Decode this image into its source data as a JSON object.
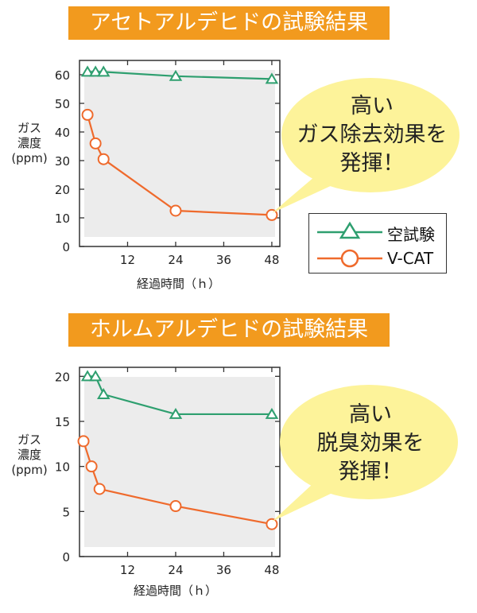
{
  "colors": {
    "banner": "#f29a1e",
    "green": "#2e9f6f",
    "orange": "#ef6a2c",
    "plot_bg": "#ececec",
    "bubble": "#fdf39a"
  },
  "legend": {
    "items": [
      {
        "label": "空試験",
        "marker": "triangle",
        "color": "#2e9f6f"
      },
      {
        "label": "V-CAT",
        "marker": "circle",
        "color": "#ef6a2c"
      }
    ]
  },
  "chart_data": [
    {
      "type": "line",
      "title": "アセトアルデヒドの試験結果",
      "ylabel_lines": [
        "ガス",
        "濃度",
        "(ppm)"
      ],
      "xlabel": "経過時間（ｈ）",
      "xlim": [
        0,
        50
      ],
      "ylim": [
        0,
        65
      ],
      "xticks": [
        12,
        24,
        36,
        48
      ],
      "yticks": [
        0,
        10,
        20,
        30,
        40,
        50,
        60
      ],
      "series": [
        {
          "name": "空試験",
          "marker": "triangle",
          "x": [
            2,
            4,
            6,
            24,
            48
          ],
          "y": [
            61,
            61,
            61,
            59.5,
            58.5
          ]
        },
        {
          "name": "V-CAT",
          "marker": "circle",
          "x": [
            2,
            4,
            6,
            24,
            48
          ],
          "y": [
            46,
            36,
            30.5,
            12.5,
            11
          ]
        }
      ],
      "callout": [
        "高い",
        "ガス除去効果を",
        "発揮！"
      ]
    },
    {
      "type": "line",
      "title": "ホルムアルデヒドの試験結果",
      "ylabel_lines": [
        "ガス",
        "濃度",
        "(ppm)"
      ],
      "xlabel": "経過時間（ｈ）",
      "xlim": [
        0,
        50
      ],
      "ylim": [
        0,
        21
      ],
      "xticks": [
        12,
        24,
        36,
        48
      ],
      "yticks": [
        0,
        5,
        10,
        15,
        20
      ],
      "series": [
        {
          "name": "空試験",
          "marker": "triangle",
          "x": [
            2,
            4,
            6,
            24,
            48
          ],
          "y": [
            20,
            20,
            18,
            15.8,
            15.8
          ]
        },
        {
          "name": "V-CAT",
          "marker": "circle",
          "x": [
            1,
            3,
            5,
            24,
            48
          ],
          "y": [
            12.8,
            10,
            7.5,
            5.6,
            3.6
          ]
        }
      ],
      "callout": [
        "高い",
        "脱臭効果を",
        "発揮！"
      ]
    }
  ]
}
